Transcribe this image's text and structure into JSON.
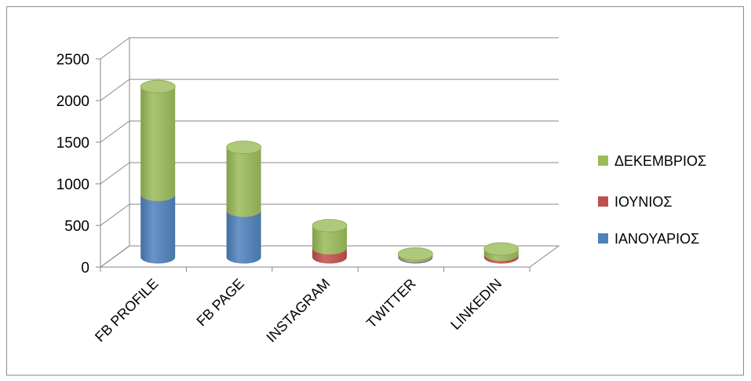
{
  "chart_data": {
    "type": "bar",
    "stacked": true,
    "style": "3d-cylinder",
    "categories": [
      "FB PROFILE",
      "FB PAGE",
      "INSTAGRAM",
      "TWITTER",
      "LINKEDIN"
    ],
    "series": [
      {
        "name": "ΙΑΝΟΥΑΡΙΟΣ",
        "color": "#4f81bd",
        "values": [
          750,
          560,
          0,
          10,
          0
        ]
      },
      {
        "name": "ΙΟΥΝΙΟΣ",
        "color": "#c0504d",
        "values": [
          0,
          0,
          110,
          5,
          30
        ]
      },
      {
        "name": "ΔΕΚΕΜΒΡΙΟΣ",
        "color": "#9bbb59",
        "values": [
          1300,
          760,
          270,
          25,
          70
        ]
      }
    ],
    "legend_order": [
      "ΔΕΚΕΜΒΡΙΟΣ",
      "ΙΟΥΝΙΟΣ",
      "ΙΑΝΟΥΑΡΙΟΣ"
    ],
    "yticks": [
      "0",
      "500",
      "1000",
      "1500",
      "2000",
      "2500"
    ],
    "ylim": [
      0,
      2500
    ],
    "grid": true,
    "legend_position": "right",
    "title": "",
    "xlabel": "",
    "ylabel": ""
  }
}
